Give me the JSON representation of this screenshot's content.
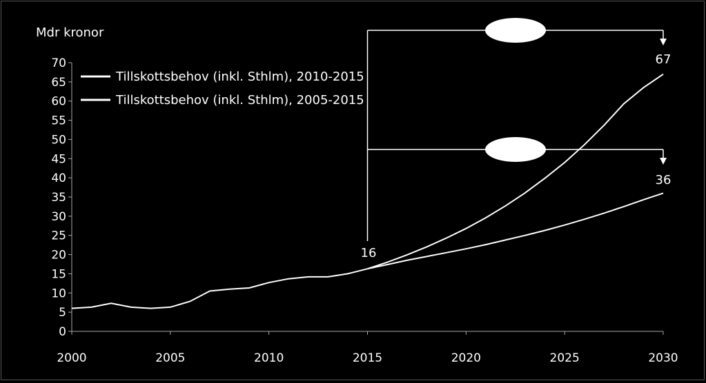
{
  "chart_data": {
    "type": "line",
    "ylabel": "Mdr kronor",
    "xlim": [
      2000,
      2030
    ],
    "ylim": [
      0,
      70
    ],
    "y_ticks": [
      0,
      5,
      10,
      15,
      20,
      25,
      30,
      35,
      40,
      45,
      50,
      55,
      60,
      65,
      70
    ],
    "x_ticks": [
      2000,
      2005,
      2010,
      2015,
      2020,
      2025,
      2030
    ],
    "grid": false,
    "legend_position": "top-left",
    "historical": {
      "x": [
        2000,
        2001,
        2002,
        2003,
        2004,
        2005,
        2006,
        2007,
        2008,
        2009,
        2010,
        2011,
        2012,
        2013,
        2014,
        2015
      ],
      "y": [
        6.0,
        6.3,
        7.3,
        6.3,
        6.0,
        6.3,
        7.8,
        10.5,
        11.0,
        11.3,
        12.7,
        13.7,
        14.2,
        14.2,
        15.0,
        16.3
      ]
    },
    "series": [
      {
        "name": "Tillskottsbehov (inkl. Sthlm), 2010-2015",
        "x": [
          2015,
          2016,
          2017,
          2018,
          2019,
          2020,
          2021,
          2022,
          2023,
          2024,
          2025,
          2026,
          2027,
          2028,
          2029,
          2030
        ],
        "y": [
          16.3,
          18.0,
          19.9,
          22.0,
          24.3,
          26.8,
          29.6,
          32.7,
          36.1,
          39.9,
          44.0,
          48.6,
          53.7,
          59.3,
          63.5,
          67.0
        ]
      },
      {
        "name": "Tillskottsbehov (inkl. Sthlm), 2005-2015",
        "x": [
          2015,
          2016,
          2017,
          2018,
          2019,
          2020,
          2021,
          2022,
          2023,
          2024,
          2025,
          2026,
          2027,
          2028,
          2029,
          2030
        ],
        "y": [
          16.3,
          17.4,
          18.5,
          19.5,
          20.5,
          21.5,
          22.6,
          23.8,
          25.0,
          26.3,
          27.7,
          29.2,
          30.8,
          32.5,
          34.3,
          36.0
        ]
      }
    ],
    "annotations": [
      {
        "text": "16",
        "x": 2015,
        "y": 16
      },
      {
        "text": "67",
        "x": 2030,
        "y": 67
      },
      {
        "text": "36",
        "x": 2030,
        "y": 36
      }
    ],
    "brackets": [
      {
        "from_x": 2015,
        "to_x": 2030,
        "target_y": 67
      },
      {
        "from_x": 2015,
        "to_x": 2030,
        "target_y": 36
      }
    ],
    "colors": {
      "background": "#000000",
      "line": "#ffffff",
      "text": "#ffffff"
    }
  }
}
